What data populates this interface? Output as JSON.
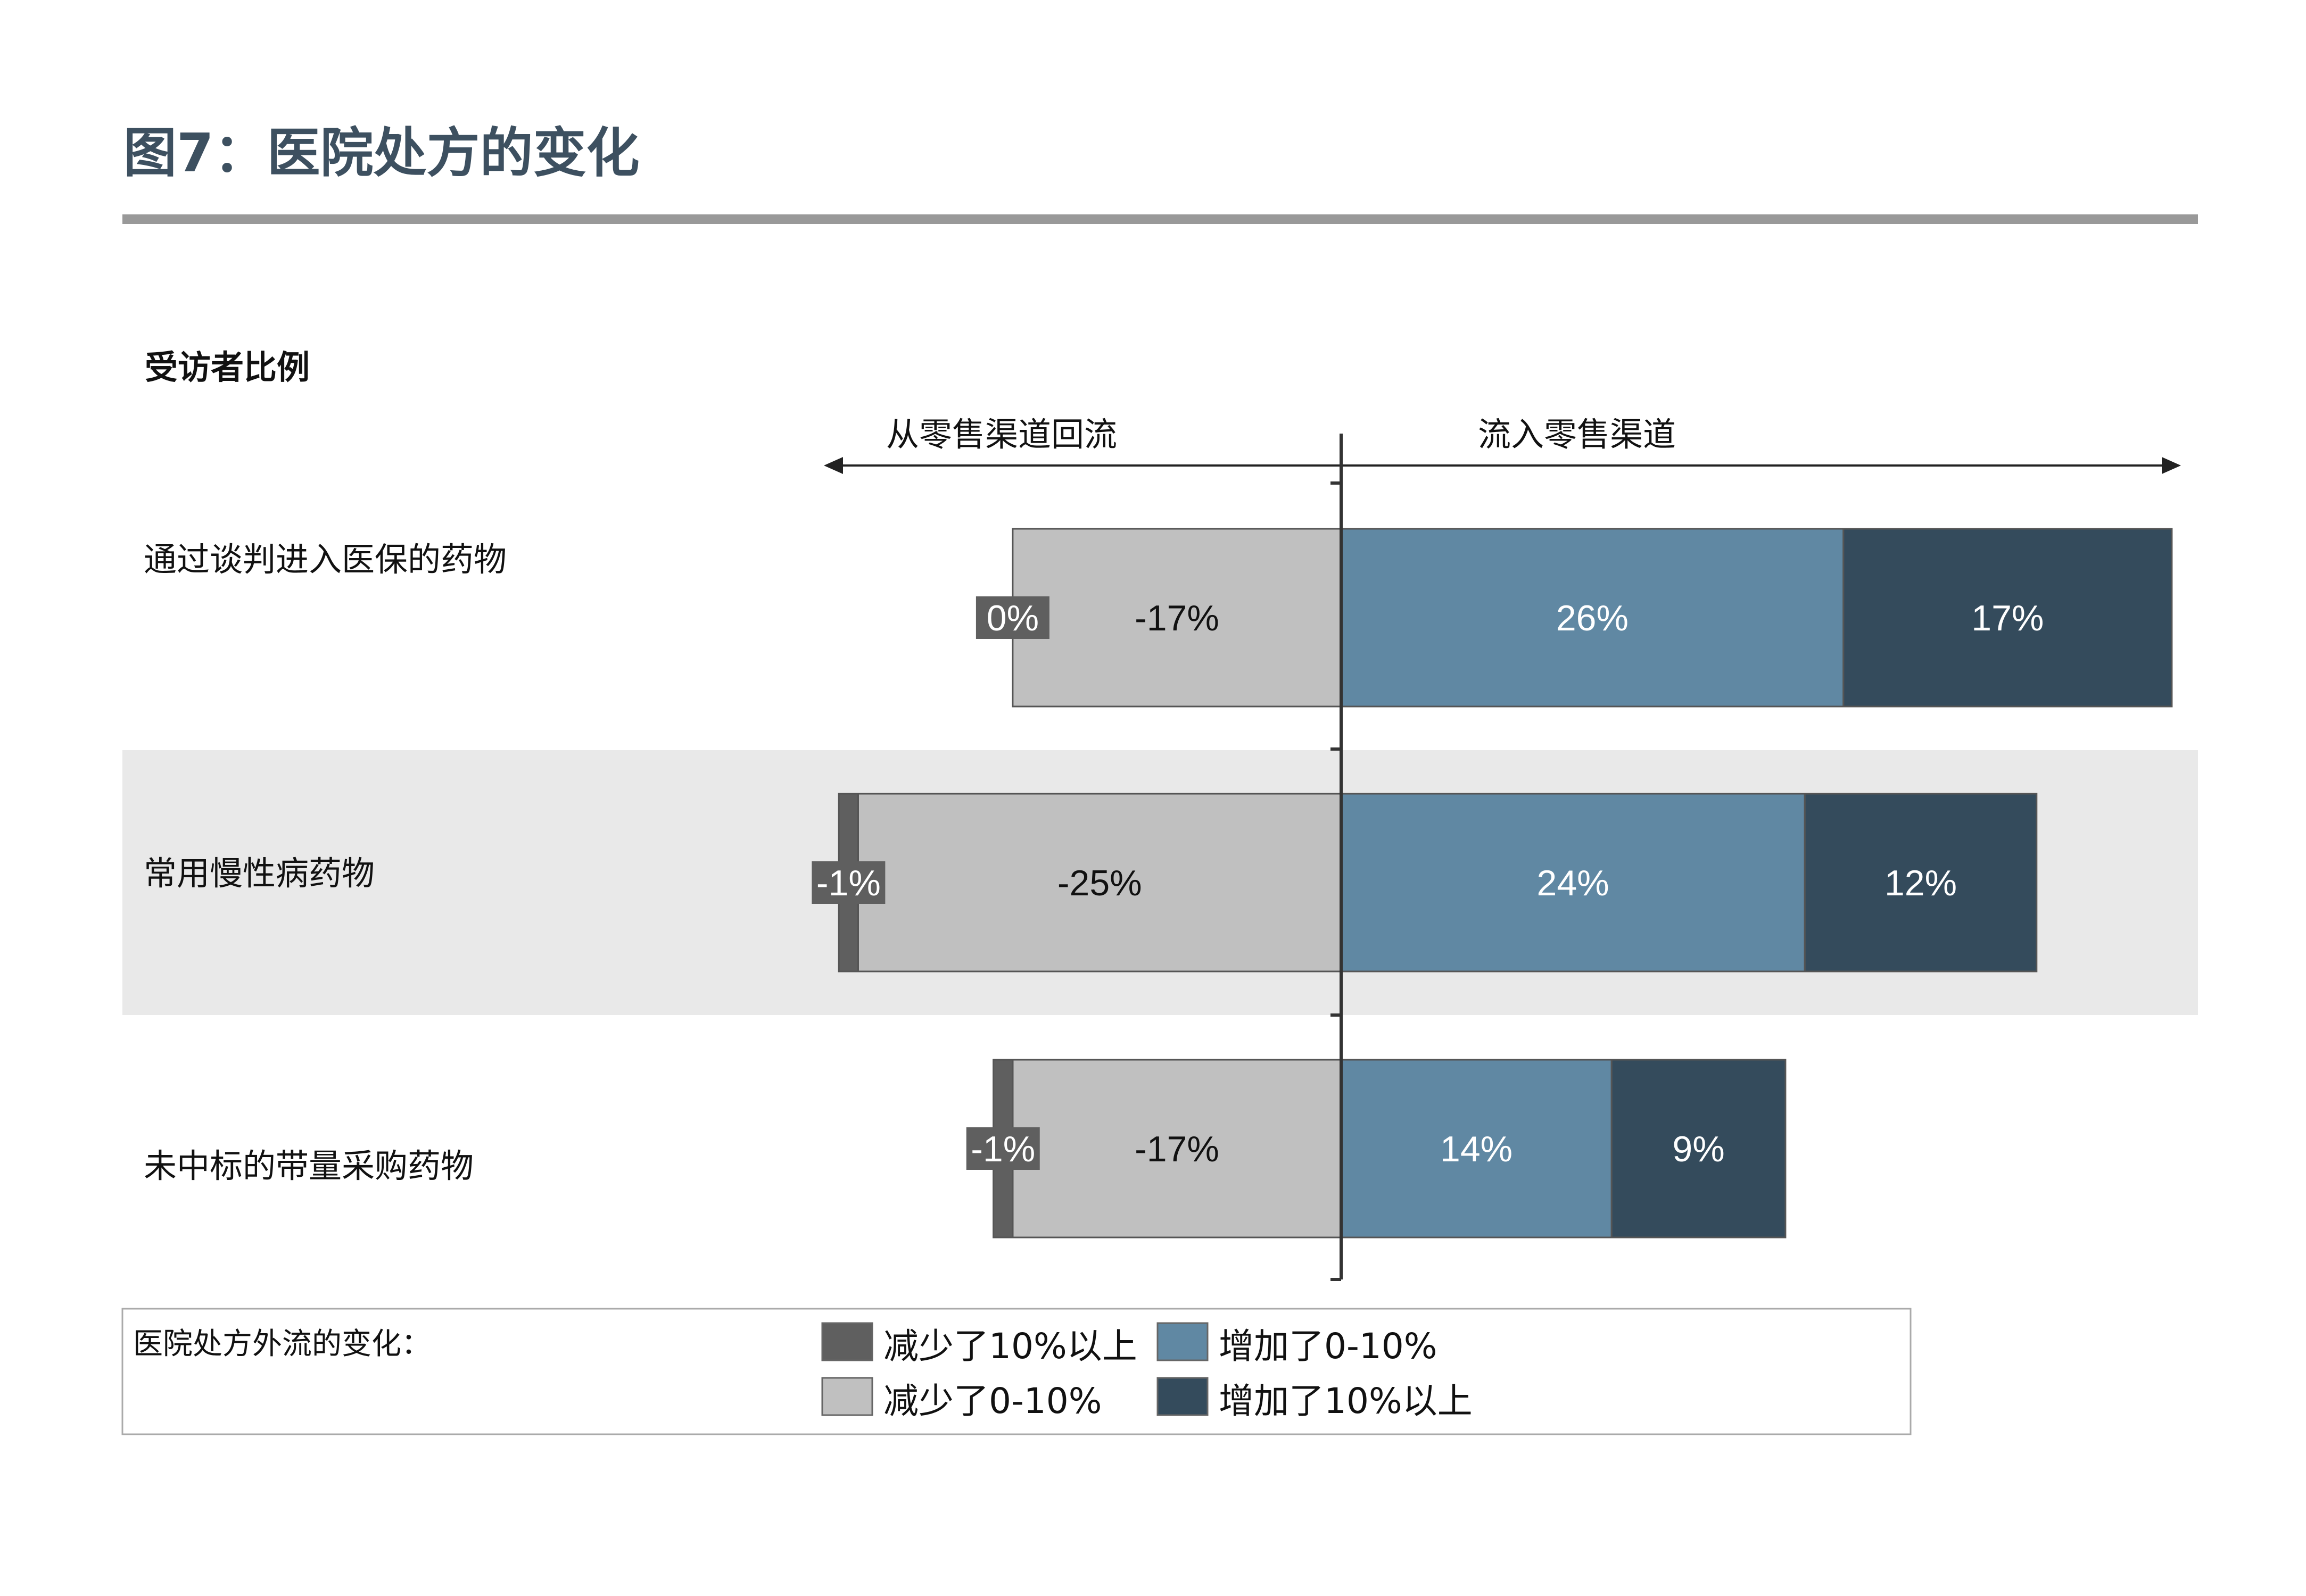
{
  "title": "图7：医院处方的变化",
  "respondent_label": "受访者比例",
  "direction_left": "从零售渠道回流",
  "direction_right": "流入零售渠道",
  "legend": {
    "title": "医院处方外流的变化：",
    "items": [
      {
        "key": "dec_gt10",
        "label": "减少了10%以上",
        "color": "#5f5f5f"
      },
      {
        "key": "inc_0_10",
        "label": "增加了0-10%",
        "color": "#6088a3"
      },
      {
        "key": "dec_0_10",
        "label": "减少了0-10%",
        "color": "#c0c0c0"
      },
      {
        "key": "inc_gt10",
        "label": "增加了10%以上",
        "color": "#344b5c"
      }
    ]
  },
  "chart_data": {
    "type": "bar",
    "orientation": "horizontal-diverging-stacked",
    "title": "图7：医院处方的变化",
    "categories": [
      "通过谈判进入医保的药物",
      "常用慢性病药物",
      "未中标的带量采购药物"
    ],
    "series": [
      {
        "name": "减少了10%以上",
        "values": [
          0,
          -1,
          -1
        ],
        "labels": [
          "0%",
          "-1%",
          "-1%"
        ],
        "color": "#5f5f5f"
      },
      {
        "name": "减少了0-10%",
        "values": [
          -17,
          -25,
          -17
        ],
        "labels": [
          "-17%",
          "-25%",
          "-17%"
        ],
        "color": "#c0c0c0"
      },
      {
        "name": "增加了0-10%",
        "values": [
          26,
          24,
          14
        ],
        "labels": [
          "26%",
          "24%",
          "14%"
        ],
        "color": "#6088a3"
      },
      {
        "name": "增加了10%以上",
        "values": [
          17,
          12,
          9
        ],
        "labels": [
          "17%",
          "12%",
          "9%"
        ],
        "color": "#344b5c"
      }
    ],
    "legend_position": "bottom"
  }
}
